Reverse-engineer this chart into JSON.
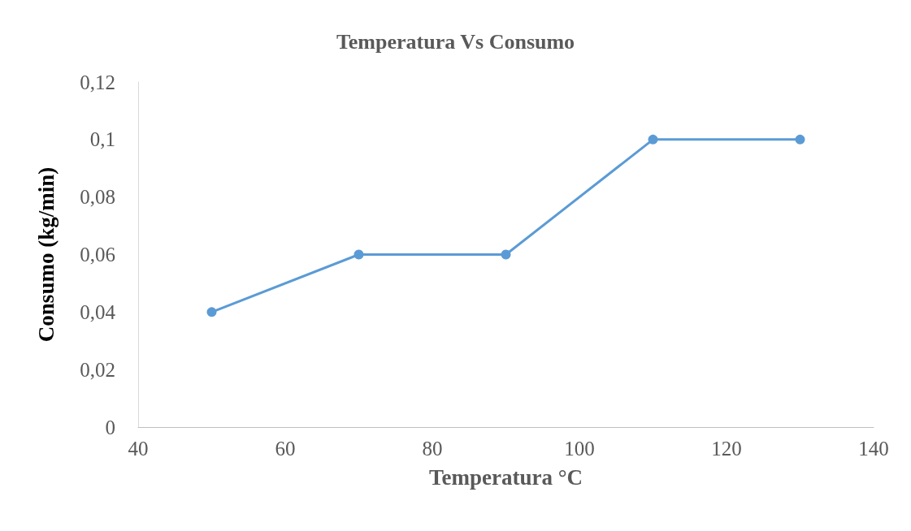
{
  "chart_data": {
    "type": "line",
    "title": "Temperatura Vs Consumo",
    "xlabel": "Temperatura °C",
    "ylabel": "Consumo (kg/min)",
    "x": [
      50,
      70,
      90,
      110,
      130
    ],
    "series": [
      {
        "color": "#5b9bd5",
        "values": [
          0.04,
          0.06,
          0.06,
          0.1,
          0.1
        ]
      }
    ],
    "xlim": [
      40,
      140
    ],
    "xticks": [
      40,
      60,
      80,
      100,
      120,
      140
    ],
    "ylim": [
      0,
      0.12
    ],
    "yticks": [
      0,
      {
        "value": 0.02,
        "label": "0,02"
      },
      {
        "value": 0.04,
        "label": "0,04"
      },
      {
        "value": 0.06,
        "label": "0,06"
      },
      {
        "value": 0.08,
        "label": "0,08"
      },
      {
        "value": 0.1,
        "label": "0,1"
      },
      {
        "value": 0.12,
        "label": "0,12"
      }
    ],
    "grid": false,
    "marker": "circle",
    "line_style": "solid"
  }
}
